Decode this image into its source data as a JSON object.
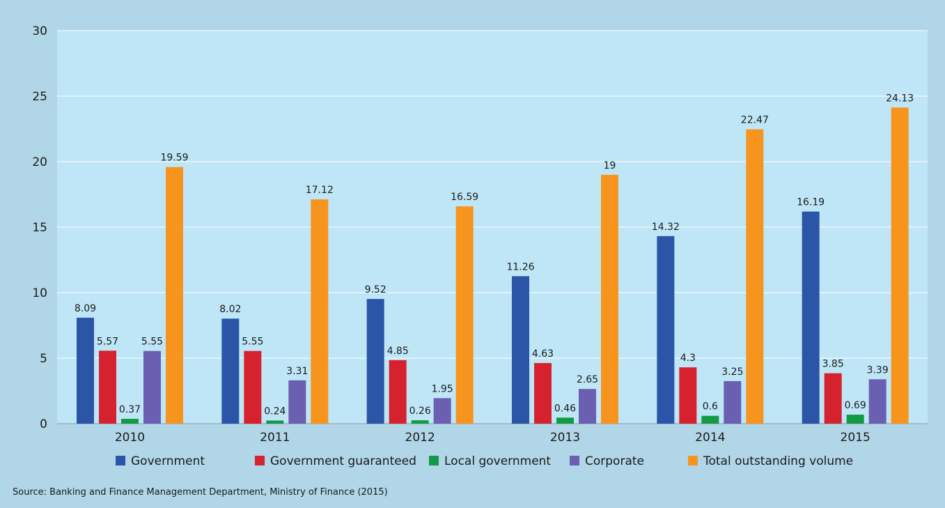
{
  "chart_data": {
    "type": "bar",
    "categories": [
      "2010",
      "2011",
      "2012",
      "2013",
      "2014",
      "2015"
    ],
    "series": [
      {
        "name": "Government",
        "color": "#2b55a6",
        "values": [
          8.09,
          8.02,
          9.52,
          11.26,
          14.32,
          16.19
        ],
        "labels": [
          "8.09",
          "8.02",
          "9.52",
          "11.26",
          "14.32",
          "16.19"
        ]
      },
      {
        "name": "Government guaranteed",
        "color": "#d6222e",
        "values": [
          5.57,
          5.55,
          4.85,
          4.63,
          4.3,
          3.85
        ],
        "labels": [
          "5.57",
          "5.55",
          "4.85",
          "4.63",
          "4.3",
          "3.85"
        ]
      },
      {
        "name": "Local government",
        "color": "#139a45",
        "values": [
          0.37,
          0.24,
          0.26,
          0.46,
          0.6,
          0.69
        ],
        "labels": [
          "0.37",
          "0.24",
          "0.26",
          "0.46",
          "0.6",
          "0.69"
        ]
      },
      {
        "name": "Corporate",
        "color": "#6a5fb0",
        "values": [
          5.55,
          3.31,
          1.95,
          2.65,
          3.25,
          3.39
        ],
        "labels": [
          "5.55",
          "3.31",
          "1.95",
          "2.65",
          "3.25",
          "3.39"
        ]
      },
      {
        "name": "Total outstanding volume",
        "color": "#f7941d",
        "values": [
          19.59,
          17.12,
          16.59,
          19,
          22.47,
          24.13
        ],
        "labels": [
          "19.59",
          "17.12",
          "16.59",
          "19",
          "22.47",
          "24.13"
        ]
      }
    ],
    "y_ticks": [
      "0",
      "5",
      "10",
      "15",
      "20",
      "25",
      "30"
    ],
    "ylim": [
      0,
      30
    ],
    "grid": true,
    "legend_position": "bottom"
  },
  "source_note": "Source:  Banking and Finance Management Department, Ministry of Finance (2015)",
  "colors": {
    "frame_bg": "#b1d6e8",
    "plot_bg": "#bfe6f7",
    "gridline": "#ffffff"
  }
}
